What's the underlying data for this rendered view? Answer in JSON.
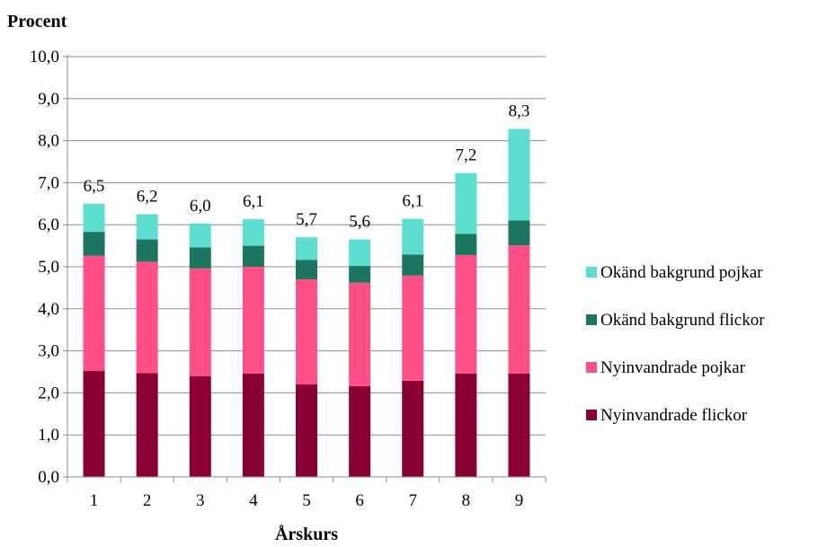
{
  "chart_data": {
    "type": "bar",
    "stacked": true,
    "ylabel": "Procent",
    "xlabel": "Årskurs",
    "categories": [
      "1",
      "2",
      "3",
      "4",
      "5",
      "6",
      "7",
      "8",
      "9"
    ],
    "ylim": [
      0,
      10
    ],
    "y_ticks": [
      "0,0",
      "1,0",
      "2,0",
      "3,0",
      "4,0",
      "5,0",
      "6,0",
      "7,0",
      "8,0",
      "9,0",
      "10,0"
    ],
    "grid": true,
    "legend_position": "right",
    "series": [
      {
        "name": "Nyinvandrade flickor",
        "color": "#8B0035",
        "values": [
          2.52,
          2.47,
          2.4,
          2.46,
          2.2,
          2.16,
          2.29,
          2.46,
          2.46
        ]
      },
      {
        "name": "Nyinvandrade pojkar",
        "color": "#FF4F87",
        "values": [
          2.74,
          2.65,
          2.56,
          2.54,
          2.5,
          2.46,
          2.5,
          2.82,
          3.05
        ]
      },
      {
        "name": "Okänd bakgrund flickor",
        "color": "#1B7561",
        "values": [
          0.57,
          0.53,
          0.5,
          0.5,
          0.46,
          0.4,
          0.5,
          0.5,
          0.59
        ]
      },
      {
        "name": "Okänd bakgrund pojkar",
        "color": "#5EDED0",
        "values": [
          0.67,
          0.6,
          0.57,
          0.63,
          0.54,
          0.63,
          0.85,
          1.45,
          2.18
        ]
      }
    ],
    "totals": [
      "6,5",
      "6,2",
      "6,0",
      "6,1",
      "5,7",
      "5,6",
      "6,1",
      "7,2",
      "8,3"
    ],
    "total_values": [
      6.5,
      6.25,
      6.03,
      6.13,
      5.7,
      5.65,
      6.14,
      7.23,
      8.28
    ]
  }
}
